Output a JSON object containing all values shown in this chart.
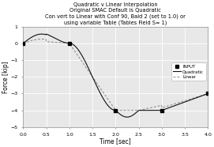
{
  "title_lines": [
    "Quadratic v Linear Interpolation",
    "Original SMAC Default is Quadratic",
    "Con vert to Linear with Conf 90, Bald 2 (set to 1.0) or",
    "using variable Table (Tables Field S= 1)"
  ],
  "xlabel": "Time [sec]",
  "ylabel": "Force [kip]",
  "xlim": [
    0,
    4
  ],
  "ylim": [
    -5,
    1
  ],
  "yticks": [
    1,
    0,
    -1,
    -2,
    -3,
    -4,
    -5
  ],
  "xticks": [
    0,
    0.5,
    1,
    1.5,
    2,
    2.5,
    3,
    3.5,
    4
  ],
  "input_points_x": [
    0,
    1,
    2,
    3,
    4
  ],
  "input_points_y": [
    0,
    0,
    -4,
    -4,
    -3
  ],
  "quadratic_color": "#111111",
  "linear_color": "#888888",
  "bg_color": "#e8e8e8",
  "grid_color": "#ffffff",
  "spine_color": "#888888",
  "legend_labels": [
    "INPUT",
    "Quadratic",
    "Linear"
  ],
  "title_fontsize": 4.8,
  "axis_label_fontsize": 5.5,
  "tick_fontsize": 4.5
}
